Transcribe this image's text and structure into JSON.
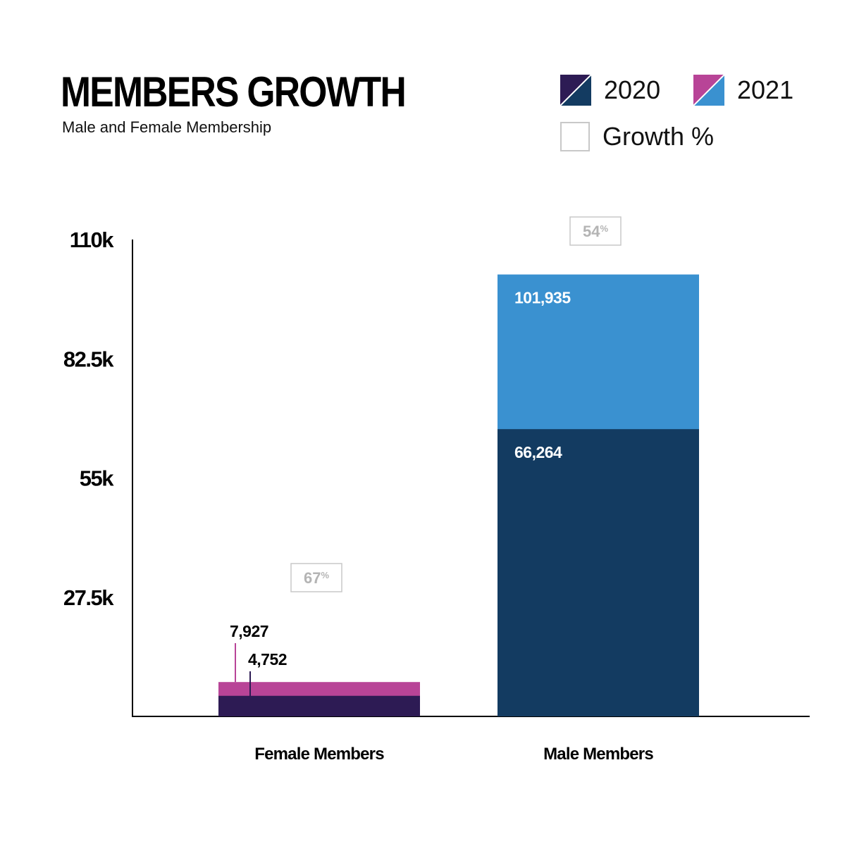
{
  "header": {
    "title": "MEMBERS GROWTH",
    "subtitle": "Male and Female Membership"
  },
  "legend": {
    "items": [
      {
        "label": "2020",
        "color_a": "#2d1b54",
        "color_b": "#133b61"
      },
      {
        "label": "2021",
        "color_a": "#b84497",
        "color_b": "#3a91d0"
      },
      {
        "label": "Growth %"
      }
    ]
  },
  "chart_data": {
    "type": "bar",
    "stacked": false,
    "overlay": true,
    "title": "MEMBERS GROWTH",
    "subtitle": "Male and Female Membership",
    "categories": [
      "Female Members",
      "Male Members"
    ],
    "series": [
      {
        "name": "2020",
        "values": [
          4752,
          66264
        ],
        "colors": [
          "#2d1b54",
          "#133b61"
        ]
      },
      {
        "name": "2021",
        "values": [
          7927,
          101935
        ],
        "colors": [
          "#b84497",
          "#3a91d0"
        ]
      }
    ],
    "data_labels": {
      "2020": [
        "4,752",
        "66,264"
      ],
      "2021": [
        "7,927",
        "101,935"
      ]
    },
    "growth": [
      {
        "value": "67",
        "unit": "%"
      },
      {
        "value": "54",
        "unit": "%"
      }
    ],
    "yticks": [
      27500,
      55000,
      82500,
      110000
    ],
    "ytick_labels": [
      "27.5k",
      "55k",
      "82.5k",
      "110k"
    ],
    "ylim": [
      0,
      110000
    ],
    "grid": false,
    "legend_position": "top-right"
  }
}
